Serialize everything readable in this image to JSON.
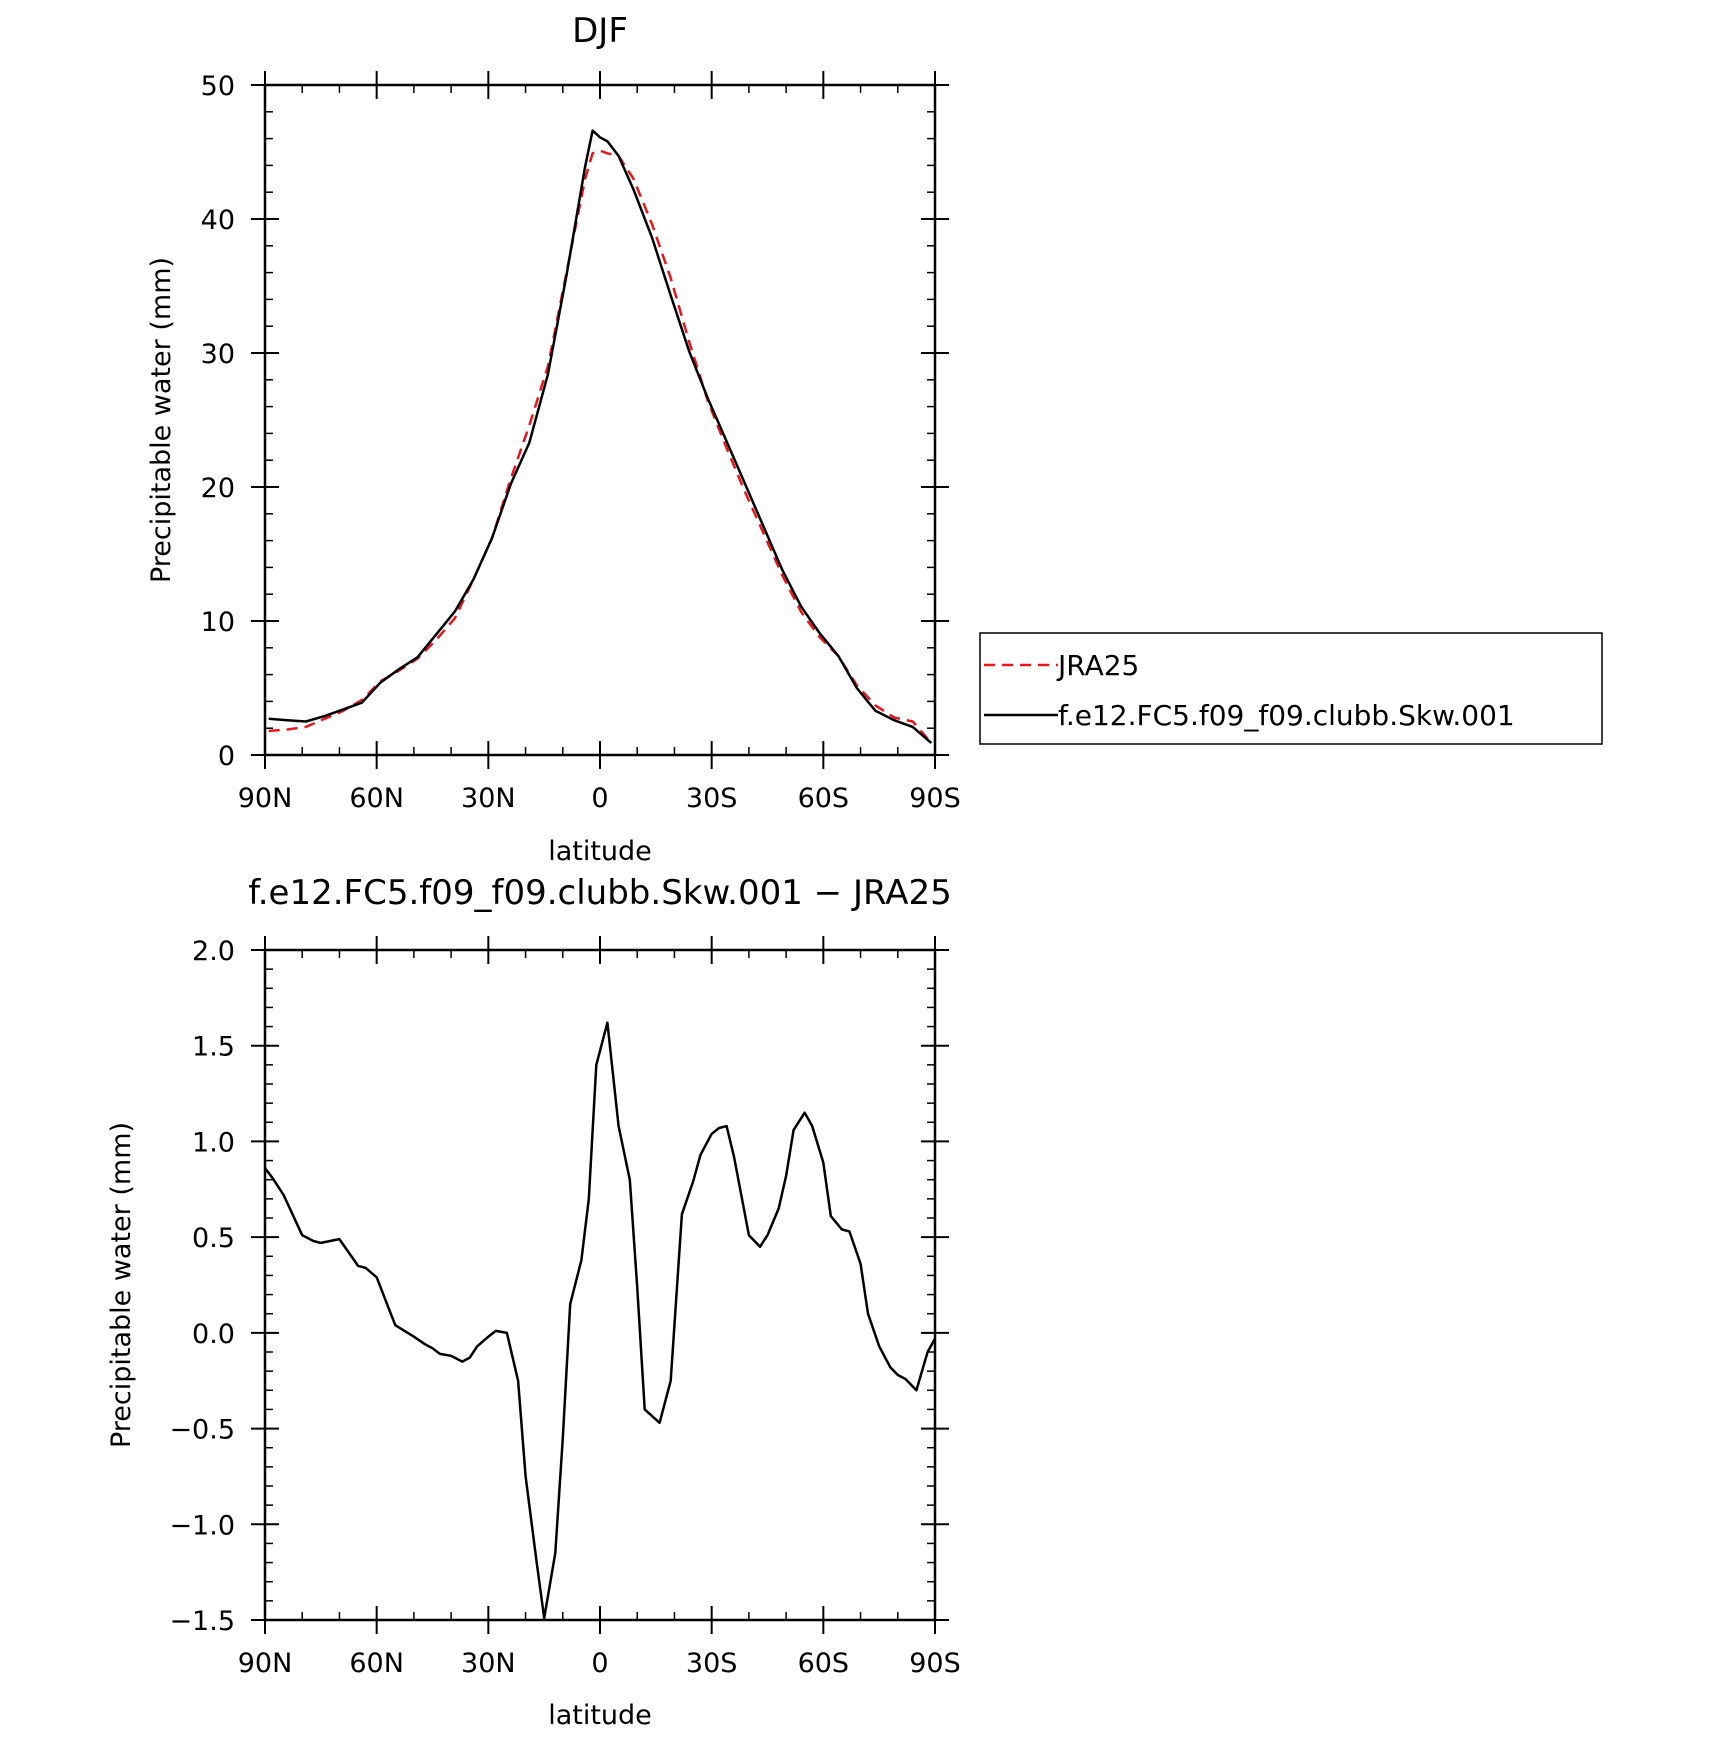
{
  "chart_data": [
    {
      "type": "line",
      "title": "DJF",
      "xlabel": "latitude",
      "ylabel": "Precipitable water (mm)",
      "xlim": [
        90,
        -90
      ],
      "ylim": [
        0,
        50
      ],
      "x_ticks": [
        90,
        60,
        30,
        0,
        -30,
        -60,
        -90
      ],
      "x_tick_labels": [
        "90N",
        "60N",
        "30N",
        "0",
        "30S",
        "60S",
        "90S"
      ],
      "y_ticks": [
        0,
        10,
        20,
        30,
        40,
        50
      ],
      "y_tick_labels": [
        "0",
        "10",
        "20",
        "30",
        "40",
        "50"
      ],
      "legend": {
        "placement": "right",
        "entries": [
          "JRA25",
          "f.e12.FC5.f09_f09.clubb.Skw.001"
        ]
      },
      "series": [
        {
          "name": "JRA25",
          "color": "#e8151b",
          "dash": true,
          "x": [
            89,
            84,
            79,
            74,
            69,
            64,
            59,
            54,
            49,
            44,
            39,
            34,
            29,
            24,
            19,
            14,
            9,
            4,
            2,
            0,
            -2,
            -5,
            -9,
            -14,
            -19,
            -24,
            -29,
            -34,
            -39,
            -44,
            -49,
            -54,
            -59,
            -64,
            -69,
            -74,
            -79,
            -84,
            -89
          ],
          "values": [
            1.8,
            1.9,
            2.1,
            2.7,
            3.3,
            4.1,
            5.5,
            6.3,
            7.2,
            8.6,
            10.2,
            13.1,
            16.2,
            20.6,
            24.6,
            29.0,
            36.0,
            43.0,
            44.9,
            45.1,
            44.9,
            44.7,
            43.0,
            39.6,
            35.6,
            30.8,
            26.4,
            22.9,
            19.6,
            16.5,
            13.4,
            10.7,
            8.8,
            7.4,
            5.2,
            3.7,
            2.8,
            2.5,
            0.9
          ]
        },
        {
          "name": "f.e12.FC5.f09_f09.clubb.Skw.001",
          "color": "#000000",
          "dash": false,
          "x": [
            89,
            84,
            79,
            74,
            69,
            64,
            59,
            54,
            49,
            44,
            39,
            34,
            29,
            24,
            19,
            14,
            9,
            4,
            2,
            0,
            -2,
            -5,
            -9,
            -14,
            -19,
            -24,
            -29,
            -34,
            -39,
            -44,
            -49,
            -54,
            -59,
            -64,
            -69,
            -74,
            -79,
            -84,
            -89
          ],
          "values": [
            2.7,
            2.6,
            2.5,
            2.9,
            3.4,
            3.9,
            5.4,
            6.4,
            7.3,
            9.0,
            10.7,
            13.1,
            16.2,
            20.2,
            23.3,
            28.4,
            35.8,
            43.9,
            46.6,
            46.1,
            45.8,
            44.7,
            42.2,
            38.6,
            34.3,
            30.1,
            26.6,
            23.4,
            20.2,
            17.0,
            13.8,
            11.1,
            9.1,
            7.4,
            5.0,
            3.3,
            2.6,
            2.1,
            0.9
          ]
        }
      ]
    },
    {
      "type": "line",
      "title": "f.e12.FC5.f09_f09.clubb.Skw.001 − JRA25",
      "xlabel": "latitude",
      "ylabel": "Precipitable water (mm)",
      "xlim": [
        90,
        -90
      ],
      "ylim": [
        -1.5,
        2.0
      ],
      "x_ticks": [
        90,
        60,
        30,
        0,
        -30,
        -60,
        -90
      ],
      "x_tick_labels": [
        "90N",
        "60N",
        "30N",
        "0",
        "30S",
        "60S",
        "90S"
      ],
      "y_ticks": [
        -1.5,
        -1.0,
        -0.5,
        0.0,
        0.5,
        1.0,
        1.5,
        2.0
      ],
      "y_tick_labels": [
        "−1.5",
        "−1.0",
        "−0.5",
        "0.0",
        "0.5",
        "1.0",
        "1.5",
        "2.0"
      ],
      "series": [
        {
          "color": "#000000",
          "dash": false,
          "x": [
            90,
            88,
            85,
            80,
            77,
            75,
            70,
            65,
            63,
            60,
            57,
            55,
            50,
            47,
            45,
            43,
            40,
            37,
            35,
            33,
            30,
            28,
            25,
            22,
            20,
            17,
            15,
            12,
            10,
            8,
            5,
            3,
            1,
            -2,
            -5,
            -8,
            -10,
            -12,
            -16,
            -19,
            -22,
            -25,
            -27,
            -30,
            -32,
            -34,
            -36,
            -40,
            -43,
            -45,
            -48,
            -50,
            -52,
            -55,
            -57,
            -60,
            -62,
            -65,
            -67,
            -70,
            -72,
            -75,
            -78,
            -80,
            -82,
            -85,
            -88,
            -90
          ],
          "values": [
            0.86,
            0.81,
            0.72,
            0.51,
            0.48,
            0.47,
            0.49,
            0.35,
            0.34,
            0.29,
            0.14,
            0.04,
            -0.02,
            -0.06,
            -0.08,
            -0.11,
            -0.12,
            -0.15,
            -0.13,
            -0.07,
            -0.02,
            0.01,
            0.0,
            -0.25,
            -0.75,
            -1.2,
            -1.49,
            -1.15,
            -0.55,
            0.15,
            0.38,
            0.7,
            1.4,
            1.62,
            1.08,
            0.8,
            0.24,
            -0.4,
            -0.47,
            -0.25,
            0.62,
            0.79,
            0.93,
            1.04,
            1.07,
            1.08,
            0.92,
            0.51,
            0.45,
            0.51,
            0.65,
            0.82,
            1.06,
            1.15,
            1.08,
            0.89,
            0.61,
            0.54,
            0.53,
            0.36,
            0.1,
            -0.07,
            -0.18,
            -0.22,
            -0.24,
            -0.3,
            -0.1,
            -0.03
          ]
        }
      ]
    }
  ]
}
